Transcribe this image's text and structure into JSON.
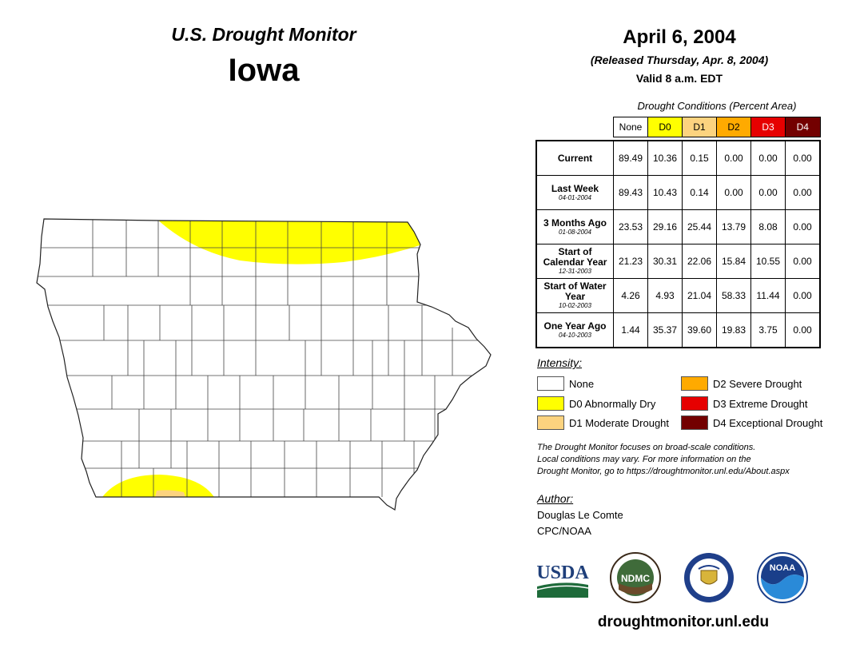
{
  "header": {
    "product": "U.S. Drought Monitor",
    "state": "Iowa",
    "date": "April 6, 2004",
    "released": "(Released Thursday, Apr. 8, 2004)",
    "valid": "Valid 8 a.m. EDT"
  },
  "table": {
    "caption": "Drought Conditions (Percent Area)",
    "columns": [
      "None",
      "D0",
      "D1",
      "D2",
      "D3",
      "D4"
    ],
    "column_colors": [
      "#ffffff",
      "#ffff00",
      "#fcd37f",
      "#ffaa00",
      "#e60000",
      "#730000"
    ],
    "column_text_colors": [
      "#000000",
      "#000000",
      "#000000",
      "#000000",
      "#ffffff",
      "#ffffff"
    ],
    "rows": [
      {
        "label": "Current",
        "date": "",
        "values": [
          "89.49",
          "10.36",
          "0.15",
          "0.00",
          "0.00",
          "0.00"
        ]
      },
      {
        "label": "Last Week",
        "date": "04-01-2004",
        "values": [
          "89.43",
          "10.43",
          "0.14",
          "0.00",
          "0.00",
          "0.00"
        ]
      },
      {
        "label": "3 Months Ago",
        "date": "01-08-2004",
        "values": [
          "23.53",
          "29.16",
          "25.44",
          "13.79",
          "8.08",
          "0.00"
        ]
      },
      {
        "label": "Start of Calendar Year",
        "date": "12-31-2003",
        "values": [
          "21.23",
          "30.31",
          "22.06",
          "15.84",
          "10.55",
          "0.00"
        ]
      },
      {
        "label": "Start of Water Year",
        "date": "10-02-2003",
        "values": [
          "4.26",
          "4.93",
          "21.04",
          "58.33",
          "11.44",
          "0.00"
        ]
      },
      {
        "label": "One Year Ago",
        "date": "04-10-2003",
        "values": [
          "1.44",
          "35.37",
          "39.60",
          "19.83",
          "3.75",
          "0.00"
        ]
      }
    ]
  },
  "legend": {
    "title": "Intensity:",
    "items": [
      {
        "label": "None",
        "color": "#ffffff"
      },
      {
        "label": "D0 Abnormally Dry",
        "color": "#ffff00"
      },
      {
        "label": "D1 Moderate Drought",
        "color": "#fcd37f"
      },
      {
        "label": "D2 Severe Drought",
        "color": "#ffaa00"
      },
      {
        "label": "D3 Extreme Drought",
        "color": "#e60000"
      },
      {
        "label": "D4 Exceptional Drought",
        "color": "#730000"
      }
    ]
  },
  "disclaimer": {
    "line1": "The Drought Monitor focuses on broad-scale conditions.",
    "line2": "Local conditions may vary. For more information on the",
    "line3": "Drought Monitor, go to https://droughtmonitor.unl.edu/About.aspx"
  },
  "author": {
    "label": "Author:",
    "name": "Douglas Le Comte",
    "org": "CPC/NOAA"
  },
  "logos": {
    "usda": "USDA",
    "ndmc": "NDMC",
    "noaa": "NOAA"
  },
  "map": {
    "drought_areas": [
      {
        "category": "D0",
        "region": "northern Iowa"
      },
      {
        "category": "D0",
        "region": "southwest Iowa"
      },
      {
        "category": "D1",
        "region": "southwest Iowa"
      }
    ]
  },
  "footer": {
    "url": "droughtmonitor.unl.edu"
  }
}
